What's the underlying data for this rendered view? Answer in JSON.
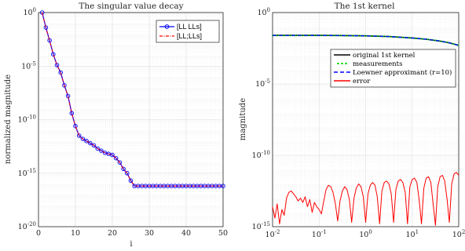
{
  "chart_data": [
    {
      "type": "line",
      "title": "The singular value decay",
      "xlabel": "i",
      "ylabel": "normalized magnitude",
      "xscale": "linear",
      "yscale": "log",
      "xlim": [
        0,
        50
      ],
      "ylim_exp": [
        -20,
        0
      ],
      "xticks": [
        "0",
        "10",
        "20",
        "30",
        "40",
        "50"
      ],
      "yticks": [
        "10^-20",
        "10^-15",
        "10^-10",
        "10^-5",
        "10^0"
      ],
      "grid": true,
      "legend": "top-right",
      "x": [
        1,
        2,
        3,
        4,
        5,
        6,
        7,
        8,
        9,
        10,
        11,
        12,
        13,
        14,
        15,
        16,
        17,
        18,
        19,
        20,
        21,
        22,
        23,
        24,
        25,
        26,
        27,
        28,
        29,
        30,
        31,
        32,
        33,
        34,
        35,
        36,
        37,
        38,
        39,
        40,
        41,
        42,
        43,
        44,
        45,
        46,
        47,
        48,
        49,
        50
      ],
      "log10_values": [
        0,
        -1.4,
        -2.6,
        -3.9,
        -4.9,
        -5.6,
        -6.8,
        -7.8,
        -9.4,
        -10.6,
        -11.5,
        -11.8,
        -12.0,
        -12.2,
        -12.4,
        -12.7,
        -12.9,
        -13.1,
        -13.2,
        -13.3,
        -13.6,
        -14.0,
        -14.6,
        -15.0,
        -15.7,
        -16.2,
        -16.2,
        -16.2,
        -16.2,
        -16.2,
        -16.2,
        -16.2,
        -16.2,
        -16.2,
        -16.2,
        -16.2,
        -16.2,
        -16.2,
        -16.2,
        -16.2,
        -16.2,
        -16.2,
        -16.2,
        -16.2,
        -16.2,
        -16.2,
        -16.2,
        -16.2,
        -16.2,
        -16.2
      ],
      "series": [
        {
          "name": "[LL LLs]",
          "color": "#0000ff",
          "marker": "circle"
        },
        {
          "name": "[LL;LLs]",
          "color": "#ff0000",
          "style": "dash-dot"
        }
      ]
    },
    {
      "type": "line",
      "title": "The 1st kernel",
      "xlabel": "",
      "ylabel": "magnitude",
      "xscale": "log",
      "yscale": "log",
      "xlim_exp": [
        -2,
        2
      ],
      "ylim_exp": [
        -15,
        0
      ],
      "xticks": [
        "10^-2",
        "10^-1",
        "10^0",
        "10^1",
        "10^2"
      ],
      "yticks": [
        "10^-15",
        "10^-10",
        "10^-5",
        "10^0"
      ],
      "grid": true,
      "legend": "right",
      "series": [
        {
          "name": "original 1st kernel",
          "color": "#000000",
          "style": "solid",
          "log10_x": [
            -2,
            -1.5,
            -1,
            -0.5,
            0,
            0.5,
            1,
            1.3,
            1.6,
            1.8,
            2
          ],
          "log10_y": [
            -1.6,
            -1.6,
            -1.6,
            -1.61,
            -1.63,
            -1.68,
            -1.78,
            -1.87,
            -2.0,
            -2.12,
            -2.3
          ]
        },
        {
          "name": "measurements",
          "color": "#00dd00",
          "style": "dotted"
        },
        {
          "name": "Loewner approximant (r=10)",
          "color": "#0000ff",
          "style": "dashed"
        },
        {
          "name": "error",
          "color": "#ff0000",
          "style": "solid",
          "log10_x": [
            -2,
            -1.95,
            -1.9,
            -1.85,
            -1.8,
            -1.75,
            -1.7,
            -1.65,
            -1.6,
            -1.55,
            -1.5,
            -1.45,
            -1.4,
            -1.35,
            -1.3,
            -1.25,
            -1.2,
            -1.15,
            -1.1,
            -1.05,
            -1.0,
            -0.95,
            -0.9,
            -0.85,
            -0.8,
            -0.75,
            -0.7,
            -0.65,
            -0.6,
            -0.55,
            -0.5,
            -0.45,
            -0.4,
            -0.35,
            -0.3,
            -0.25,
            -0.2,
            -0.15,
            -0.1,
            -0.05,
            0,
            0.05,
            0.1,
            0.15,
            0.2,
            0.25,
            0.3,
            0.35,
            0.4,
            0.45,
            0.5,
            0.55,
            0.6,
            0.65,
            0.7,
            0.75,
            0.8,
            0.85,
            0.9,
            0.95,
            1.0,
            1.05,
            1.1,
            1.15,
            1.2,
            1.25,
            1.3,
            1.35,
            1.4,
            1.45,
            1.5,
            1.55,
            1.6,
            1.65,
            1.7,
            1.75,
            1.8,
            1.85,
            1.9,
            1.95,
            2.0
          ],
          "log10_y": [
            -13.6,
            -14.4,
            -13.4,
            -14.8,
            -13.8,
            -14.2,
            -13.0,
            -12.6,
            -12.5,
            -12.7,
            -12.9,
            -13.2,
            -13.0,
            -13.3,
            -12.9,
            -13.6,
            -13.1,
            -14.0,
            -13.3,
            -13.6,
            -13.8,
            -14.1,
            -13.2,
            -12.4,
            -12.1,
            -12.2,
            -12.6,
            -13.4,
            -14.6,
            -13.2,
            -12.5,
            -12.2,
            -12.4,
            -13.1,
            -14.7,
            -13.0,
            -12.3,
            -12.0,
            -12.2,
            -12.9,
            -14.7,
            -12.7,
            -12.1,
            -11.9,
            -12.1,
            -12.9,
            -14.8,
            -12.5,
            -11.9,
            -11.8,
            -12.0,
            -12.7,
            -14.7,
            -12.4,
            -11.8,
            -11.7,
            -11.9,
            -12.6,
            -14.8,
            -12.2,
            -11.7,
            -11.6,
            -11.9,
            -13.1,
            -14.8,
            -12.3,
            -11.6,
            -11.5,
            -11.9,
            -13.4,
            -14.9,
            -12.2,
            -11.5,
            -11.4,
            -11.8,
            -13.1,
            -14.7,
            -12.0,
            -11.3,
            -11.2,
            -11.4
          ]
        }
      ]
    }
  ]
}
